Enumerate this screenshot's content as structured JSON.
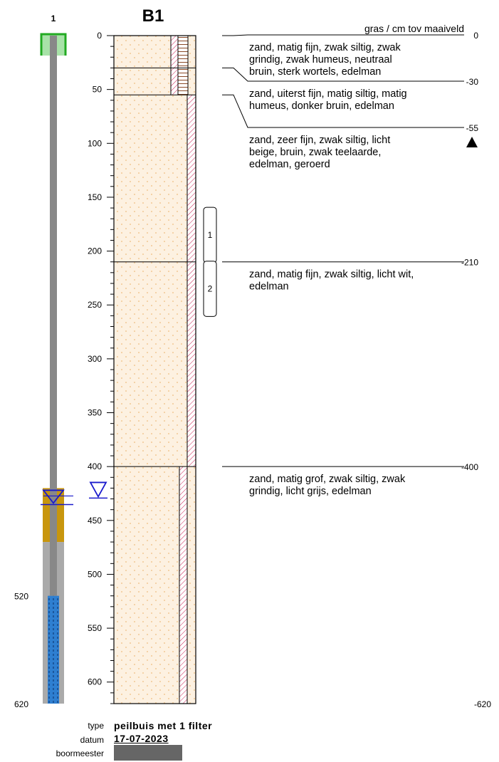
{
  "boring": {
    "title": "B1",
    "surface_label": "gras / cm tov maaiveld",
    "depth_axis": {
      "min": 0,
      "max": 620,
      "major_step": 50,
      "minor_step": 10,
      "ticks": [
        "0",
        "50",
        "100",
        "150",
        "200",
        "250",
        "300",
        "350",
        "400",
        "450",
        "500",
        "550",
        "600"
      ]
    },
    "layers": [
      {
        "top": 0,
        "bottom": 30,
        "top_label": "0",
        "description": [
          "zand, matig fijn, zwak siltig, zwak",
          "grindig, zwak humeus, neutraal",
          "bruin, sterk wortels, edelman"
        ],
        "humus": true
      },
      {
        "top": 30,
        "bottom": 55,
        "top_label": "-30",
        "description": [
          "zand, uiterst fijn, matig siltig, matig",
          "humeus, donker bruin, edelman"
        ],
        "humus": true
      },
      {
        "top": 55,
        "bottom": 210,
        "top_label": "-55",
        "description": [
          "zand, zeer fijn, zwak siltig, licht",
          "beige, bruin, zwak teelaarde,",
          "edelman, geroerd"
        ],
        "humus": false
      },
      {
        "top": 210,
        "bottom": 400,
        "top_label": "-210",
        "description": [
          "zand, matig fijn, zwak siltig, licht wit,",
          "edelman"
        ],
        "humus": false
      },
      {
        "top": 400,
        "bottom": 620,
        "top_label": "-400",
        "description": [
          "zand, matig grof, zwak siltig, zwak",
          "grindig, licht grijs, edelman"
        ],
        "humus": false
      }
    ],
    "bottom_label": "-620",
    "samples": [
      {
        "label": "1",
        "top": 160,
        "bottom": 210
      },
      {
        "label": "2",
        "top": 210,
        "bottom": 260
      }
    ],
    "groundwater_level": 420
  },
  "piezometer": {
    "number": "1",
    "bentonite": {
      "top": 420,
      "bottom": 470
    },
    "filter": {
      "top": 520,
      "bottom": 620
    },
    "filter_top_label": "520",
    "filter_bottom_label": "620",
    "groundwater_level": 422
  },
  "colors": {
    "sand": "#fdf1e1",
    "sand_dot": "#f7ddb8",
    "hatch": "#cc2255",
    "humus": "#8a4a26",
    "well_cap": "#33aa33",
    "well_tube": "#888888",
    "bentonite": "#c8960e",
    "filter": "#2e7fd1",
    "water_marker": "#1a1acc",
    "boormeester_bar": "#666666"
  },
  "meta": {
    "type_label": "type",
    "type_value": "peilbuis met 1 filter",
    "datum_label": "datum",
    "datum_value": "17-07-2023",
    "boormeester_label": "boormeester"
  }
}
